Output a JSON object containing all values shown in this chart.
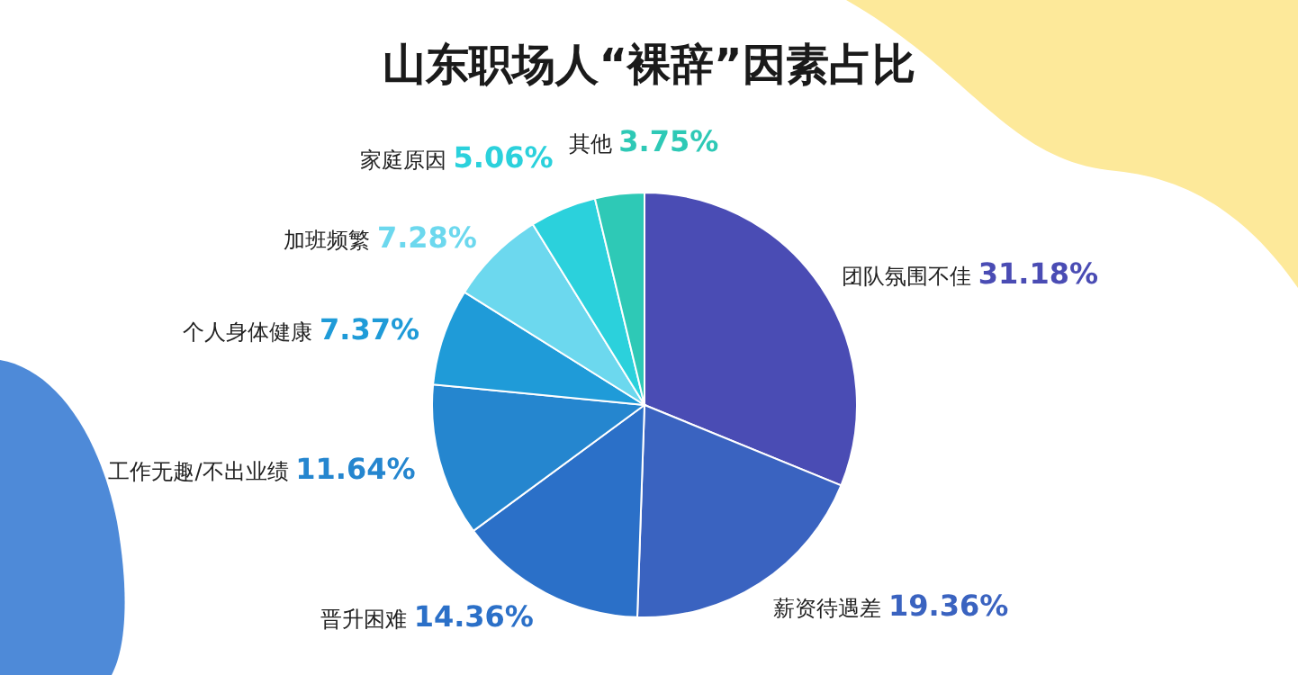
{
  "chart_data": {
    "type": "pie",
    "title": "山东职场人“裸辞”因素占比",
    "categories": [
      "团队氛围不佳",
      "薪资待遇差",
      "晋升困难",
      "工作无趣/不出业绩",
      "个人身体健康",
      "加班频繁",
      "家庭原因",
      "其他"
    ],
    "values": [
      31.18,
      19.36,
      14.36,
      11.64,
      7.37,
      7.28,
      5.06,
      3.75
    ],
    "value_labels": [
      "31.18%",
      "19.36%",
      "14.36%",
      "11.64%",
      "7.37%",
      "7.28%",
      "5.06%",
      "3.75%"
    ],
    "colors": [
      "#4a4cb4",
      "#3a63c0",
      "#2b70c8",
      "#2586cf",
      "#1f9bd8",
      "#6cd8ee",
      "#2bd1dc",
      "#2ec9b6"
    ]
  }
}
